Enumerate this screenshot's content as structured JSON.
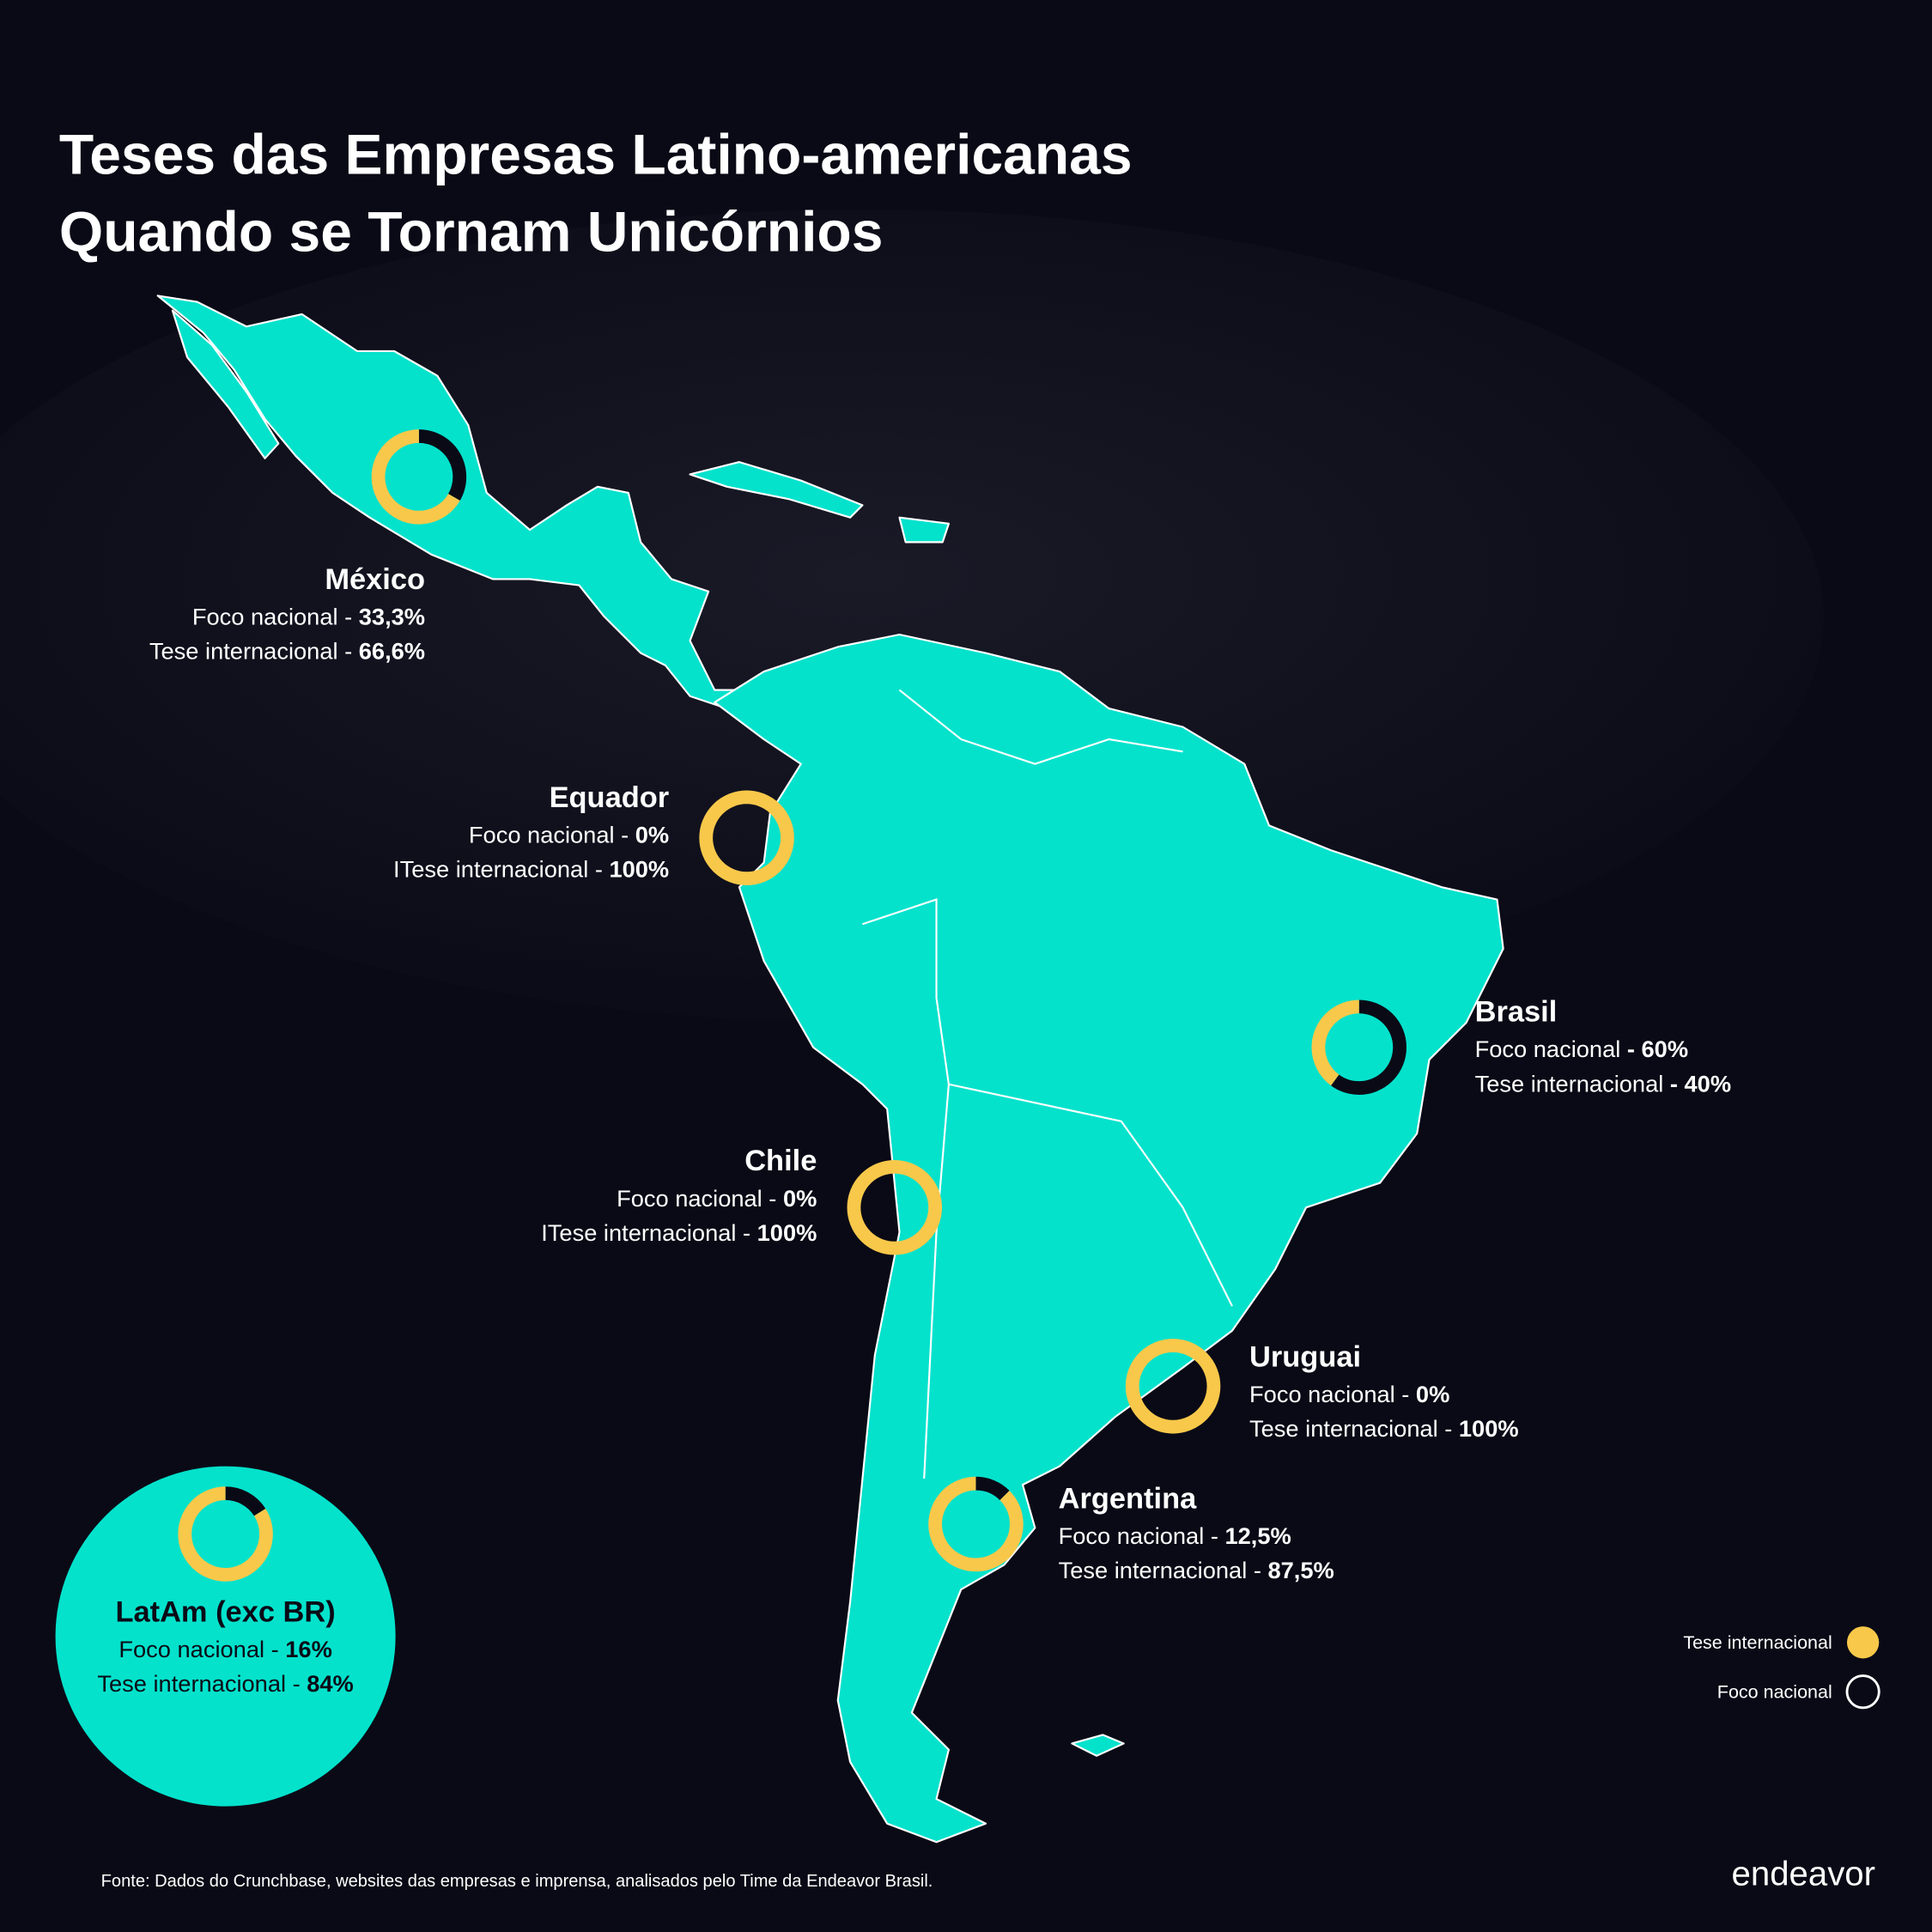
{
  "title": [
    "Teses das Empresas Latino-americanas",
    "Quando se Tornam Unicórnios"
  ],
  "regions": [
    {
      "name": "México",
      "foco_label": "Foco nacional - ",
      "foco": 33.3,
      "foco_text": "33,3%",
      "tese_label": "Tese internacional -  ",
      "tese": 66.6,
      "tese_text": "66,6%"
    },
    {
      "name": "Equador",
      "foco_label": "Foco nacional - ",
      "foco": 0,
      "foco_text": "0%",
      "tese_label": "ITese internacional - ",
      "tese": 100,
      "tese_text": "100%"
    },
    {
      "name": "Brasil",
      "foco_label": "Foco nacional ",
      "foco": 60,
      "foco_text": "- 60%",
      "tese_label": "Tese internacional ",
      "tese": 40,
      "tese_text": "- 40%"
    },
    {
      "name": "Chile",
      "foco_label": "Foco nacional - ",
      "foco": 0,
      "foco_text": "0%",
      "tese_label": "ITese internacional - ",
      "tese": 100,
      "tese_text": "100%"
    },
    {
      "name": "Uruguai",
      "foco_label": "Foco nacional - ",
      "foco": 0,
      "foco_text": "0%",
      "tese_label": "Tese internacional - ",
      "tese": 100,
      "tese_text": "100%"
    },
    {
      "name": "Argentina",
      "foco_label": "Foco nacional - ",
      "foco": 12.5,
      "foco_text": "12,5%",
      "tese_label": "Tese internacional - ",
      "tese": 87.5,
      "tese_text": "87,5%"
    },
    {
      "name": "LatAm (exc BR)",
      "foco_label": "Foco nacional - ",
      "foco": 16,
      "foco_text": "16%",
      "tese_label": "Tese internacional - ",
      "tese": 84,
      "tese_text": "84%"
    }
  ],
  "legend": [
    {
      "label": "Tese internacional",
      "color": "#f8c84a"
    },
    {
      "label": "Foco nacional",
      "color": "#0a0a16"
    }
  ],
  "source": "Fonte: Dados do Crunchbase, websites das empresas e imprensa, analisados pelo Time da Endeavor Brasil.",
  "logo": "endeavor"
}
